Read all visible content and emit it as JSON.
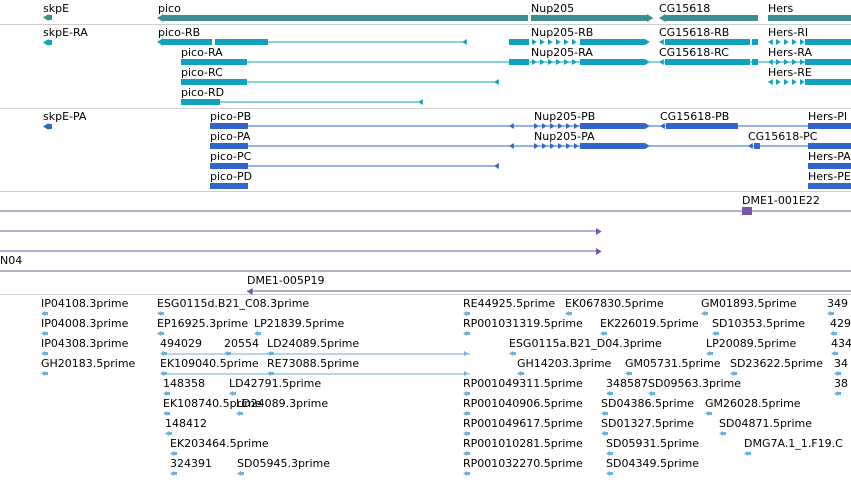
{
  "colors": {
    "gene": "#3d8f8f",
    "transcript": "#0fa3bf",
    "protein": "#3366cc",
    "clone": "#7755aa",
    "est": "#6eb1dc"
  },
  "genes": [
    {
      "label": "skpE"
    },
    {
      "label": "pico"
    },
    {
      "label": "Nup205"
    },
    {
      "label": "CG15618"
    },
    {
      "label": "Hers"
    }
  ],
  "transcripts": [
    {
      "label": "skpE-RA"
    },
    {
      "label": "pico-RB"
    },
    {
      "label": "pico-RA"
    },
    {
      "label": "pico-RC"
    },
    {
      "label": "pico-RD"
    },
    {
      "label": "Nup205-RB"
    },
    {
      "label": "Nup205-RA"
    },
    {
      "label": "CG15618-RB"
    },
    {
      "label": "CG15618-RC"
    },
    {
      "label": "Hers-RI"
    },
    {
      "label": "Hers-RA"
    },
    {
      "label": "Hers-RE"
    }
  ],
  "proteins": [
    {
      "label": "skpE-PA"
    },
    {
      "label": "pico-PB"
    },
    {
      "label": "pico-PA"
    },
    {
      "label": "pico-PC"
    },
    {
      "label": "pico-PD"
    },
    {
      "label": "Nup205-PB"
    },
    {
      "label": "Nup205-PA"
    },
    {
      "label": "CG15618-PB"
    },
    {
      "label": "CG15618-PC"
    },
    {
      "label": "Hers-PI"
    },
    {
      "label": "Hers-PA"
    },
    {
      "label": "Hers-PE"
    }
  ],
  "clones": [
    {
      "label": "DME1-001E22"
    },
    {
      "label": "N04"
    },
    {
      "label": "DME1-005P19"
    }
  ],
  "ests": [
    {
      "label": "IP04108.3prime"
    },
    {
      "label": "IP04008.3prime"
    },
    {
      "label": "IP04308.3prime"
    },
    {
      "label": "GH20183.5prime"
    },
    {
      "label": "ESG0115d.B21_C08.3prime"
    },
    {
      "label": "EP16925.3prime"
    },
    {
      "label": "494029"
    },
    {
      "label": "EK109040.5prime"
    },
    {
      "label": "148358"
    },
    {
      "label": "EK108740.5prime"
    },
    {
      "label": "148412"
    },
    {
      "label": "EK203464.5prime"
    },
    {
      "label": "324391"
    },
    {
      "label": "LP21839.5prime"
    },
    {
      "label": "20554"
    },
    {
      "label": "LD24089.5prime"
    },
    {
      "label": "RE73088.5prime"
    },
    {
      "label": "LD42791.5prime"
    },
    {
      "label": "LD24089.3prime"
    },
    {
      "label": "SD05945.3prime"
    },
    {
      "label": "RE44925.5prime"
    },
    {
      "label": "RP001031319.5prime"
    },
    {
      "label": "ESG0115a.B21_D04.3prime"
    },
    {
      "label": "GH14203.3prime"
    },
    {
      "label": "RP001049311.5prime"
    },
    {
      "label": "RP001040906.5prime"
    },
    {
      "label": "RP001049617.5prime"
    },
    {
      "label": "RP001010281.5prime"
    },
    {
      "label": "RP001032270.5prime"
    },
    {
      "label": "EK067830.5prime"
    },
    {
      "label": "EK226019.5prime"
    },
    {
      "label": "GM05731.5prime"
    },
    {
      "label": "348587"
    },
    {
      "label": "SD09563.3prime"
    },
    {
      "label": "SD04386.5prime"
    },
    {
      "label": "SD01327.5prime"
    },
    {
      "label": "SD05931.5prime"
    },
    {
      "label": "SD04349.5prime"
    },
    {
      "label": "GM01893.5prime"
    },
    {
      "label": "SD10353.5prime"
    },
    {
      "label": "LP20089.5prime"
    },
    {
      "label": "SD23622.5prime"
    },
    {
      "label": "GM26028.5prime"
    },
    {
      "label": "SD04871.5prime"
    },
    {
      "label": "DMG7A.1_1.F19.C"
    },
    {
      "label": "349"
    },
    {
      "label": "429"
    },
    {
      "label": "434"
    },
    {
      "label": "34"
    },
    {
      "label": "38"
    }
  ]
}
